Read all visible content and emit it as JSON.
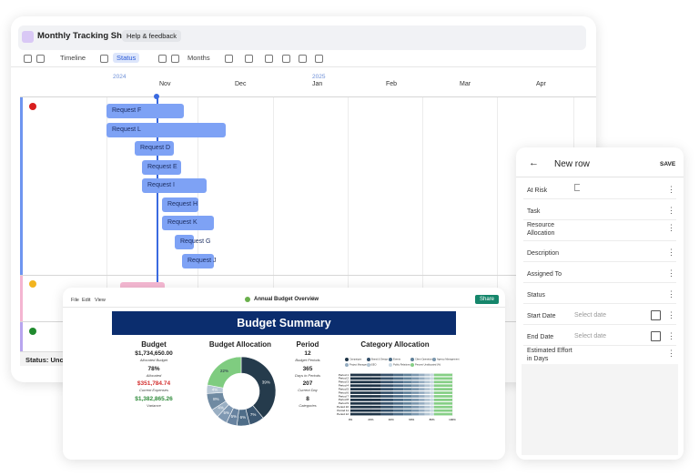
{
  "tracker": {
    "title": "Monthly Tracking Sheet",
    "help": "Help & feedback",
    "toolbar": [
      "Timeline",
      "Status",
      "Months"
    ],
    "years": [
      "2024",
      "2025"
    ],
    "months": [
      "Nov",
      "Dec",
      "Jan",
      "Feb",
      "Mar",
      "Apr"
    ],
    "requests": [
      "Request F",
      "Request L",
      "Request D",
      "Request E",
      "Request I",
      "Request H",
      "Request K",
      "Request G",
      "Request J"
    ],
    "status": "Status: Unca"
  },
  "form": {
    "title": "New row",
    "save": "SAVE",
    "fields": [
      "At Risk",
      "Task",
      "Resource Allocation",
      "Description",
      "Assigned To",
      "Status",
      "Start Date",
      "End Date",
      "Estimated Effort in Days"
    ],
    "placeholder": "Select date"
  },
  "budget": {
    "menu": [
      "File",
      "Edit",
      "View"
    ],
    "title": "Annual Budget Overview",
    "share": "Share",
    "banner": "Budget Summary",
    "summary": {
      "heading": "Budget",
      "items": [
        {
          "value": "$1,734,650.00",
          "label": "Allocated Budget"
        },
        {
          "value": "78%",
          "label": "Allocated"
        },
        {
          "value": "$351,784.74",
          "label": "Current Expenses"
        },
        {
          "value": "$1,382,865.26",
          "label": "Variance"
        }
      ]
    },
    "allocation": {
      "type": "pie",
      "heading": "Budget Allocation",
      "values": [
        39,
        7,
        6,
        5,
        5,
        4,
        8,
        4,
        22
      ],
      "value_labels": [
        "39%",
        "7%",
        "6%",
        "5%",
        "5%",
        "4%",
        "8%",
        "4%",
        "22%"
      ],
      "colors": [
        "#253b4c",
        "#3b5670",
        "#4f6d88",
        "#6883a0",
        "#7f98b2",
        "#9aafc3",
        "#6f8aa2",
        "#b7c7d6",
        "#7fcc80"
      ]
    },
    "period": {
      "heading": "Period",
      "items": [
        {
          "value": "12",
          "label": "Budget Periods"
        },
        {
          "value": "365",
          "label": "Days in Periods"
        },
        {
          "value": "207",
          "label": "Current Day"
        },
        {
          "value": "8",
          "label": "Categories"
        }
      ]
    },
    "category": {
      "type": "bar",
      "heading": "Category Allocation",
      "categories": [
        "Period 1",
        "Period 2",
        "Period 3",
        "Period 4",
        "Period 5",
        "Period 6",
        "Period 7",
        "Period 8",
        "Period 9",
        "Period 10",
        "Period 11",
        "Period 12"
      ],
      "series": [
        {
          "name": "Campaigns",
          "color": "#1f3447",
          "values": [
            30,
            30,
            30,
            30,
            30,
            30,
            30,
            30,
            30,
            30,
            30,
            30
          ]
        },
        {
          "name": "Brand & Design",
          "color": "#34506a",
          "values": [
            12,
            12,
            12,
            12,
            12,
            12,
            12,
            12,
            12,
            12,
            12,
            12
          ]
        },
        {
          "name": "Events",
          "color": "#4a6a85",
          "values": [
            10,
            10,
            10,
            10,
            10,
            10,
            10,
            10,
            10,
            10,
            10,
            10
          ]
        },
        {
          "name": "Client Operations",
          "color": "#5f8099",
          "values": [
            8,
            8,
            8,
            8,
            8,
            8,
            8,
            8,
            8,
            8,
            8,
            8
          ]
        },
        {
          "name": "Agency Management",
          "color": "#7a96ad",
          "values": [
            7,
            7,
            7,
            7,
            7,
            7,
            7,
            7,
            7,
            7,
            7,
            7
          ]
        },
        {
          "name": "Project Management",
          "color": "#95acc0",
          "values": [
            6,
            6,
            6,
            6,
            6,
            6,
            6,
            6,
            6,
            6,
            6,
            6
          ]
        },
        {
          "name": "SEO",
          "color": "#b3c5d3",
          "values": [
            5,
            5,
            5,
            5,
            5,
            5,
            5,
            5,
            5,
            5,
            5,
            5
          ]
        },
        {
          "name": "Public Relations",
          "color": "#c9d8e3",
          "values": [
            4,
            4,
            4,
            4,
            4,
            4,
            4,
            4,
            4,
            4,
            4,
            4
          ]
        },
        {
          "name": "Percent Unallocated (%)",
          "color": "#86cf86",
          "values": [
            18,
            18,
            18,
            18,
            18,
            18,
            18,
            18,
            18,
            18,
            18,
            18
          ]
        }
      ],
      "xlim": [
        0,
        100
      ],
      "xticks": [
        {
          "value": 0,
          "label": "0%"
        },
        {
          "value": 20,
          "label": "20%"
        },
        {
          "value": 40,
          "label": "40%"
        },
        {
          "value": 60,
          "label": "60%"
        },
        {
          "value": 80,
          "label": "80%"
        },
        {
          "value": 100,
          "label": "100%"
        }
      ]
    }
  }
}
